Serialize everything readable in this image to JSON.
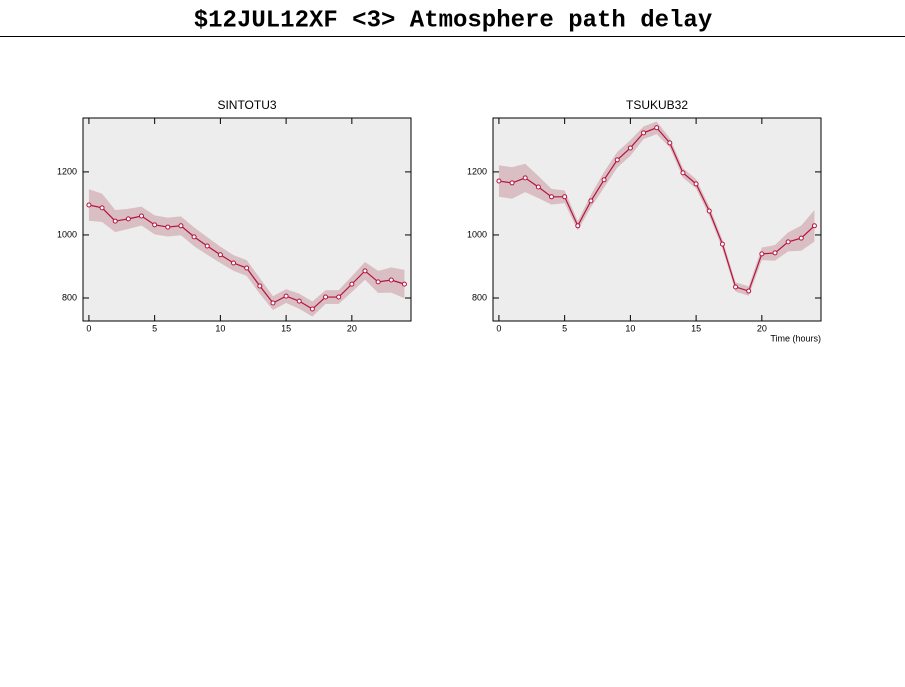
{
  "page_title": "$12JUL12XF <3>  Atmosphere path delay",
  "chart_data": [
    {
      "type": "line",
      "title": "SINTOTU3",
      "x": [
        0,
        1,
        2,
        3,
        4,
        5,
        6,
        7,
        8,
        9,
        10,
        11,
        12,
        13,
        14,
        15,
        16,
        17,
        18,
        19,
        20,
        21,
        22,
        23,
        24
      ],
      "series": [
        {
          "color": "#b5123c",
          "band_color": "#d9bfc4",
          "values": [
            1095,
            1086,
            1044,
            1051,
            1060,
            1032,
            1025,
            1029,
            994,
            965,
            937,
            911,
            895,
            838,
            784,
            806,
            790,
            765,
            803,
            803,
            844,
            886,
            851,
            857,
            844
          ],
          "errors": [
            50,
            45,
            35,
            32,
            30,
            30,
            30,
            30,
            30,
            28,
            26,
            25,
            25,
            25,
            22,
            22,
            24,
            24,
            22,
            22,
            25,
            28,
            35,
            40,
            45
          ]
        }
      ],
      "xlim": [
        -0.45,
        24.5
      ],
      "xticks": [
        0,
        5,
        10,
        15,
        20
      ],
      "ylim": [
        727,
        1371
      ],
      "yticks": [
        800,
        1000,
        1200
      ]
    },
    {
      "type": "line",
      "title": "TSUKUB32",
      "x_label": "Time (hours)",
      "x": [
        0,
        1,
        2,
        3,
        4,
        5,
        6,
        7,
        8,
        9,
        10,
        11,
        12,
        13,
        14,
        15,
        16,
        17,
        18,
        19,
        20,
        21,
        22,
        23,
        24
      ],
      "series": [
        {
          "color": "#b5123c",
          "band_color": "#d9bfc4",
          "values": [
            1171,
            1165,
            1181,
            1152,
            1121,
            1121,
            1029,
            1108,
            1175,
            1238,
            1276,
            1324,
            1340,
            1292,
            1197,
            1162,
            1076,
            971,
            835,
            822,
            940,
            943,
            978,
            990,
            1029
          ],
          "errors": [
            50,
            50,
            45,
            35,
            25,
            20,
            15,
            20,
            25,
            25,
            25,
            20,
            20,
            15,
            15,
            15,
            15,
            15,
            15,
            15,
            20,
            25,
            30,
            40,
            50
          ]
        }
      ],
      "xlim": [
        -0.45,
        24.5
      ],
      "xticks": [
        0,
        5,
        10,
        15,
        20
      ],
      "ylim": [
        727,
        1371
      ],
      "yticks": [
        800,
        1000,
        1200
      ]
    }
  ]
}
